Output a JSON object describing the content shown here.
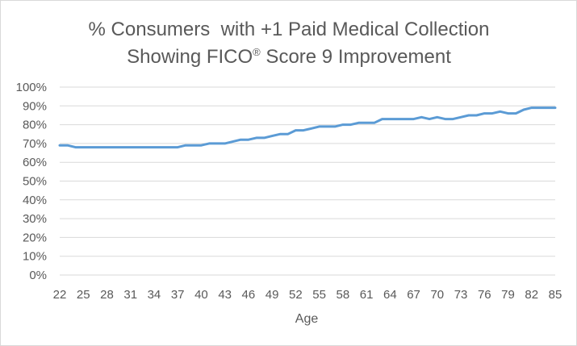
{
  "chart_data": {
    "type": "line",
    "title_line1": "% Consumers  with +1 Paid Medical Collection",
    "title_line2_before": "Showing FICO",
    "title_line2_sup": "®",
    "title_line2_after": " Score 9 Improvement",
    "xlabel": "Age",
    "ylabel": "",
    "xlim": [
      22,
      85
    ],
    "ylim": [
      0,
      100
    ],
    "x_ticks": [
      22,
      25,
      28,
      31,
      34,
      37,
      40,
      43,
      46,
      49,
      52,
      55,
      58,
      61,
      64,
      67,
      70,
      73,
      76,
      79,
      82,
      85
    ],
    "y_ticks": [
      0,
      10,
      20,
      30,
      40,
      50,
      60,
      70,
      80,
      90,
      100
    ],
    "y_tick_labels": [
      "0%",
      "10%",
      "20%",
      "30%",
      "40%",
      "50%",
      "60%",
      "70%",
      "80%",
      "90%",
      "100%"
    ],
    "grid": true,
    "legend": "none",
    "line_color": "#5b9bd5",
    "series": [
      {
        "x": [
          22,
          23,
          24,
          25,
          26,
          27,
          28,
          29,
          30,
          31,
          32,
          33,
          34,
          35,
          36,
          37,
          38,
          39,
          40,
          41,
          42,
          43,
          44,
          45,
          46,
          47,
          48,
          49,
          50,
          51,
          52,
          53,
          54,
          55,
          56,
          57,
          58,
          59,
          60,
          61,
          62,
          63,
          64,
          65,
          66,
          67,
          68,
          69,
          70,
          71,
          72,
          73,
          74,
          75,
          76,
          77,
          78,
          79,
          80,
          81,
          82,
          83,
          84,
          85
        ],
        "values": [
          69,
          69,
          68,
          68,
          68,
          68,
          68,
          68,
          68,
          68,
          68,
          68,
          68,
          68,
          68,
          68,
          69,
          69,
          69,
          70,
          70,
          70,
          71,
          72,
          72,
          73,
          73,
          74,
          75,
          75,
          77,
          77,
          78,
          79,
          79,
          79,
          80,
          80,
          81,
          81,
          81,
          83,
          83,
          83,
          83,
          83,
          84,
          83,
          84,
          83,
          83,
          84,
          85,
          85,
          86,
          86,
          87,
          86,
          86,
          88,
          89,
          89,
          89,
          89
        ]
      }
    ]
  }
}
